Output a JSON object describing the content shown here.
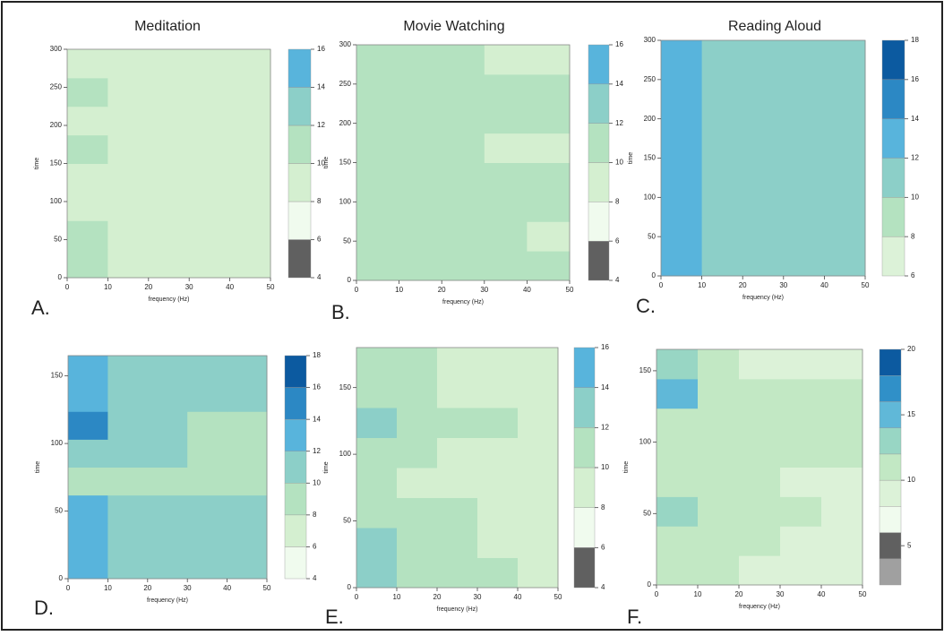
{
  "chart_data": [
    {
      "type": "contour",
      "title": "Meditation",
      "panel_label": "A.",
      "xlabel": "frequency (Hz)",
      "ylabel": "time",
      "xlim": [
        0,
        50
      ],
      "xticks": [
        0,
        10,
        20,
        30,
        40,
        50
      ],
      "ylim": [
        0,
        300
      ],
      "yticks": [
        0,
        50,
        100,
        150,
        200,
        250,
        300
      ],
      "levels": [
        4,
        6,
        8,
        10,
        12,
        14,
        16
      ],
      "colors": [
        "#606060",
        "#f0fbee",
        "#d4efd0",
        "#b4e2c0",
        "#8ccfc8",
        "#58b4dc"
      ],
      "colorbar_ticks": [
        4,
        6,
        8,
        10,
        12,
        14,
        16
      ],
      "z": [
        [
          10.5,
          9.5,
          9,
          9,
          9
        ],
        [
          10,
          9.5,
          9,
          9,
          9
        ],
        [
          9.5,
          9,
          9,
          9,
          8.8
        ],
        [
          9.5,
          9,
          9,
          9,
          9
        ],
        [
          10,
          9.5,
          9,
          9,
          9
        ],
        [
          9.5,
          9,
          9,
          8.8,
          9
        ],
        [
          10,
          9.5,
          9,
          9,
          9
        ],
        [
          9.5,
          9,
          9,
          9,
          9
        ]
      ]
    },
    {
      "type": "contour",
      "title": "Movie Watching",
      "panel_label": "B.",
      "xlabel": "frequency (Hz)",
      "ylabel": "time",
      "xlim": [
        0,
        50
      ],
      "xticks": [
        0,
        10,
        20,
        30,
        40,
        50
      ],
      "ylim": [
        0,
        300
      ],
      "yticks": [
        0,
        50,
        100,
        150,
        200,
        250,
        300
      ],
      "levels": [
        4,
        6,
        8,
        10,
        12,
        14,
        16
      ],
      "colors": [
        "#606060",
        "#f0fbee",
        "#d4efd0",
        "#b4e2c0",
        "#8ccfc8",
        "#58b4dc"
      ],
      "colorbar_ticks": [
        4,
        6,
        8,
        10,
        12,
        14,
        16
      ],
      "z": [
        [
          11,
          10.5,
          10,
          10,
          10
        ],
        [
          10.5,
          10,
          10,
          10,
          9.5
        ],
        [
          10.5,
          10,
          10,
          10,
          10
        ],
        [
          11,
          10.5,
          10,
          10,
          10
        ],
        [
          10.5,
          10,
          10,
          9.5,
          9.5
        ],
        [
          11,
          10.5,
          10,
          10,
          10
        ],
        [
          10.5,
          10,
          10,
          10,
          10
        ],
        [
          10.5,
          10,
          10,
          9.5,
          9.5
        ]
      ]
    },
    {
      "type": "contour",
      "title": "Reading Aloud",
      "panel_label": "C.",
      "xlabel": "frequency (Hz)",
      "ylabel": "time",
      "xlim": [
        0,
        50
      ],
      "xticks": [
        0,
        10,
        20,
        30,
        40,
        50
      ],
      "ylim": [
        0,
        300
      ],
      "yticks": [
        0,
        50,
        100,
        150,
        200,
        250,
        300
      ],
      "levels": [
        6,
        8,
        10,
        12,
        14,
        16,
        18
      ],
      "colors": [
        "#dcf2d8",
        "#b4e2c0",
        "#8ccfc8",
        "#58b4dc",
        "#2c88c4",
        "#0c5aa0"
      ],
      "colorbar_ticks": [
        6,
        8,
        10,
        12,
        14,
        16,
        18
      ],
      "z": [
        [
          12.5,
          11,
          11,
          10.5,
          10
        ],
        [
          12,
          11,
          11,
          11,
          10.5
        ],
        [
          12.5,
          11.5,
          11,
          11,
          10.5
        ],
        [
          12,
          11,
          11,
          11,
          11
        ],
        [
          12.5,
          11.5,
          11,
          11,
          10.5
        ],
        [
          12,
          11,
          11,
          10.5,
          10.5
        ],
        [
          12.5,
          11.5,
          11,
          11,
          10.5
        ],
        [
          12,
          11,
          11,
          11,
          10.5
        ]
      ]
    },
    {
      "type": "contour",
      "panel_label": "D.",
      "xlabel": "frequency (Hz)",
      "ylabel": "time",
      "xlim": [
        0,
        50
      ],
      "xticks": [
        0,
        10,
        20,
        30,
        40,
        50
      ],
      "ylim": [
        0,
        165
      ],
      "yticks": [
        0,
        50,
        100,
        150
      ],
      "levels": [
        4,
        6,
        8,
        10,
        12,
        14,
        16,
        18
      ],
      "colors": [
        "#f0fbee",
        "#d4efd0",
        "#b4e2c0",
        "#8ccfc8",
        "#58b4dc",
        "#2c88c4",
        "#0c5aa0"
      ],
      "colorbar_ticks": [
        4,
        6,
        8,
        10,
        12,
        14,
        16,
        18
      ],
      "z": [
        [
          13,
          11,
          11,
          10.5,
          10
        ],
        [
          13,
          11.5,
          11,
          10,
          10
        ],
        [
          12.5,
          11,
          11,
          10.5,
          10
        ],
        [
          9.5,
          9,
          9,
          9,
          8.5
        ],
        [
          11,
          10.5,
          10,
          9.5,
          9
        ],
        [
          15,
          11,
          10,
          9.5,
          9
        ],
        [
          12.5,
          11,
          10.5,
          10.5,
          10
        ],
        [
          13,
          11.5,
          11,
          11,
          10.5
        ]
      ]
    },
    {
      "type": "contour",
      "panel_label": "E.",
      "xlabel": "frequency (Hz)",
      "ylabel": "time",
      "xlim": [
        0,
        50
      ],
      "xticks": [
        0,
        10,
        20,
        30,
        40,
        50
      ],
      "ylim": [
        0,
        180
      ],
      "yticks": [
        0,
        50,
        100,
        150
      ],
      "levels": [
        4,
        6,
        8,
        10,
        12,
        14,
        16
      ],
      "colors": [
        "#606060",
        "#f0fbee",
        "#d4efd0",
        "#b4e2c0",
        "#8ccfc8",
        "#58b4dc"
      ],
      "colorbar_ticks": [
        4,
        6,
        8,
        10,
        12,
        14,
        16
      ],
      "z": [
        [
          13,
          10.5,
          10,
          10,
          9.5
        ],
        [
          12,
          10.5,
          10,
          9.5,
          9.5
        ],
        [
          11,
          10,
          10,
          9.5,
          9
        ],
        [
          10.5,
          9.5,
          9.5,
          9,
          9
        ],
        [
          11,
          10,
          9.5,
          9.5,
          9
        ],
        [
          12,
          10.5,
          10,
          10,
          9.5
        ],
        [
          11,
          10,
          9.5,
          9,
          9
        ],
        [
          11.5,
          10,
          9.5,
          9.5,
          9
        ]
      ]
    },
    {
      "type": "contour",
      "panel_label": "F.",
      "xlabel": "frequency (Hz)",
      "ylabel": "time",
      "xlim": [
        0,
        50
      ],
      "xticks": [
        0,
        10,
        20,
        30,
        40,
        50
      ],
      "ylim": [
        0,
        165
      ],
      "yticks": [
        0,
        50,
        100,
        150
      ],
      "levels": [
        2,
        4,
        6,
        8,
        10,
        12,
        14,
        16,
        18,
        20
      ],
      "colors": [
        "#a0a0a0",
        "#606060",
        "#f0fbee",
        "#dcf2d8",
        "#c2e8c4",
        "#98d6c4",
        "#60b8d8",
        "#3090c8",
        "#0c5aa0"
      ],
      "colorbar_ticks": [
        5,
        10,
        15,
        20
      ],
      "z": [
        [
          11,
          10,
          9.5,
          9.5,
          9.5
        ],
        [
          11,
          10,
          10,
          9.5,
          9.5
        ],
        [
          13,
          10,
          10,
          10,
          9.5
        ],
        [
          10.5,
          10,
          10,
          9.5,
          9.5
        ],
        [
          10.5,
          10,
          10,
          10,
          10
        ],
        [
          11,
          10,
          10,
          10,
          10
        ],
        [
          15,
          11,
          10,
          10,
          10
        ],
        [
          12,
          10,
          9,
          9,
          9
        ]
      ]
    }
  ]
}
